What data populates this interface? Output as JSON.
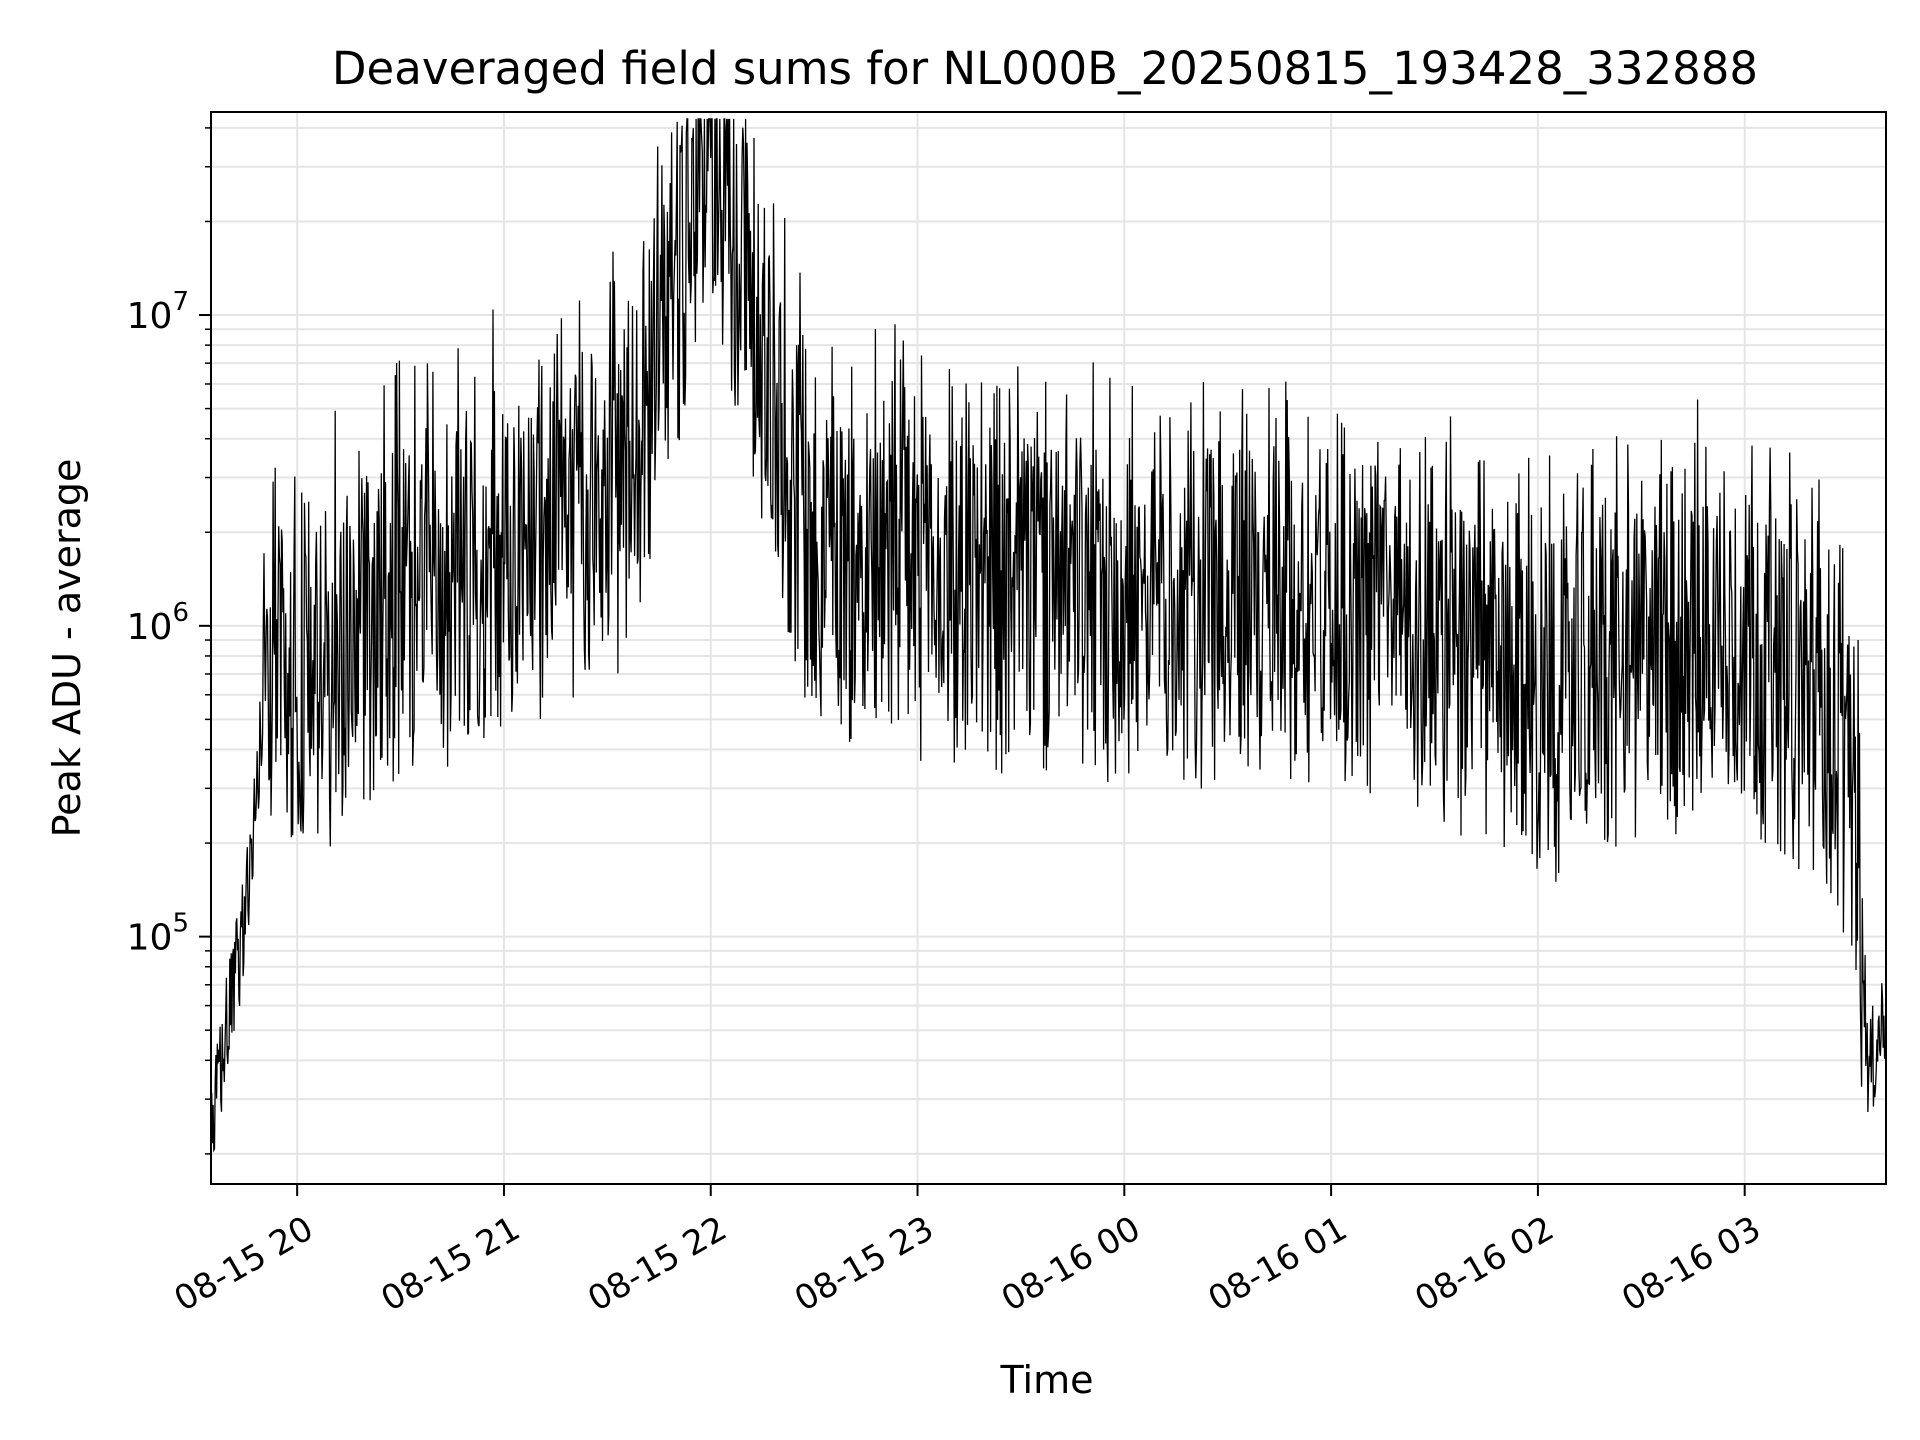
{
  "chart_data": {
    "type": "line",
    "title": "Deaveraged field sums for NL000B_20250815_193428_332888",
    "xlabel": "Time",
    "ylabel": "Peak ADU - average",
    "yscale": "log",
    "ylim": [
      16000,
      45000000
    ],
    "xlim": [
      "2025-08-15 19:35",
      "2025-08-16 03:41"
    ],
    "grid": true,
    "line_color": "#000000",
    "grid_color": "#e5e5e5",
    "x_ticks": [
      {
        "value": "2025-08-15 20:00",
        "label": "08-15 20"
      },
      {
        "value": "2025-08-15 21:00",
        "label": "08-15 21"
      },
      {
        "value": "2025-08-15 22:00",
        "label": "08-15 22"
      },
      {
        "value": "2025-08-15 23:00",
        "label": "08-15 23"
      },
      {
        "value": "2025-08-16 00:00",
        "label": "08-16 00"
      },
      {
        "value": "2025-08-16 01:00",
        "label": "08-16 01"
      },
      {
        "value": "2025-08-16 02:00",
        "label": "08-16 02"
      },
      {
        "value": "2025-08-16 03:00",
        "label": "08-16 03"
      }
    ],
    "y_ticks": [
      {
        "value": 100000,
        "base": "10",
        "exp": "5"
      },
      {
        "value": 1000000,
        "base": "10",
        "exp": "6"
      },
      {
        "value": 10000000,
        "base": "10",
        "exp": "7"
      }
    ],
    "series": [
      {
        "name": "",
        "description_points": [
          {
            "x": "2025-08-15 19:35",
            "y": 20000
          },
          {
            "x": "2025-08-15 19:38",
            "y": 40000
          },
          {
            "x": "2025-08-15 19:42",
            "y": 70000
          },
          {
            "x": "2025-08-15 19:46",
            "y": 150000
          },
          {
            "x": "2025-08-15 19:50",
            "y": 500000
          },
          {
            "x": "2025-08-15 19:53",
            "y": 900000
          },
          {
            "x": "2025-08-15 20:00",
            "y": 550000
          },
          {
            "x": "2025-08-15 20:30",
            "y": 1100000
          },
          {
            "x": "2025-08-15 21:00",
            "y": 1400000
          },
          {
            "x": "2025-08-15 21:35",
            "y": 2500000
          },
          {
            "x": "2025-08-15 22:00",
            "y": 32000000
          },
          {
            "x": "2025-08-15 22:30",
            "y": 1500000
          },
          {
            "x": "2025-08-15 23:00",
            "y": 1300000
          },
          {
            "x": "2025-08-16 00:00",
            "y": 1000000
          },
          {
            "x": "2025-08-16 01:00",
            "y": 1100000
          },
          {
            "x": "2025-08-16 01:30",
            "y": 800000
          },
          {
            "x": "2025-08-16 02:00",
            "y": 500000
          },
          {
            "x": "2025-08-16 02:30",
            "y": 700000
          },
          {
            "x": "2025-08-16 03:00",
            "y": 800000
          },
          {
            "x": "2025-08-16 03:20",
            "y": 500000
          },
          {
            "x": "2025-08-16 03:32",
            "y": 300000
          },
          {
            "x": "2025-08-16 03:36",
            "y": 35000
          },
          {
            "x": "2025-08-16 03:41",
            "y": 60000
          }
        ]
      }
    ]
  }
}
